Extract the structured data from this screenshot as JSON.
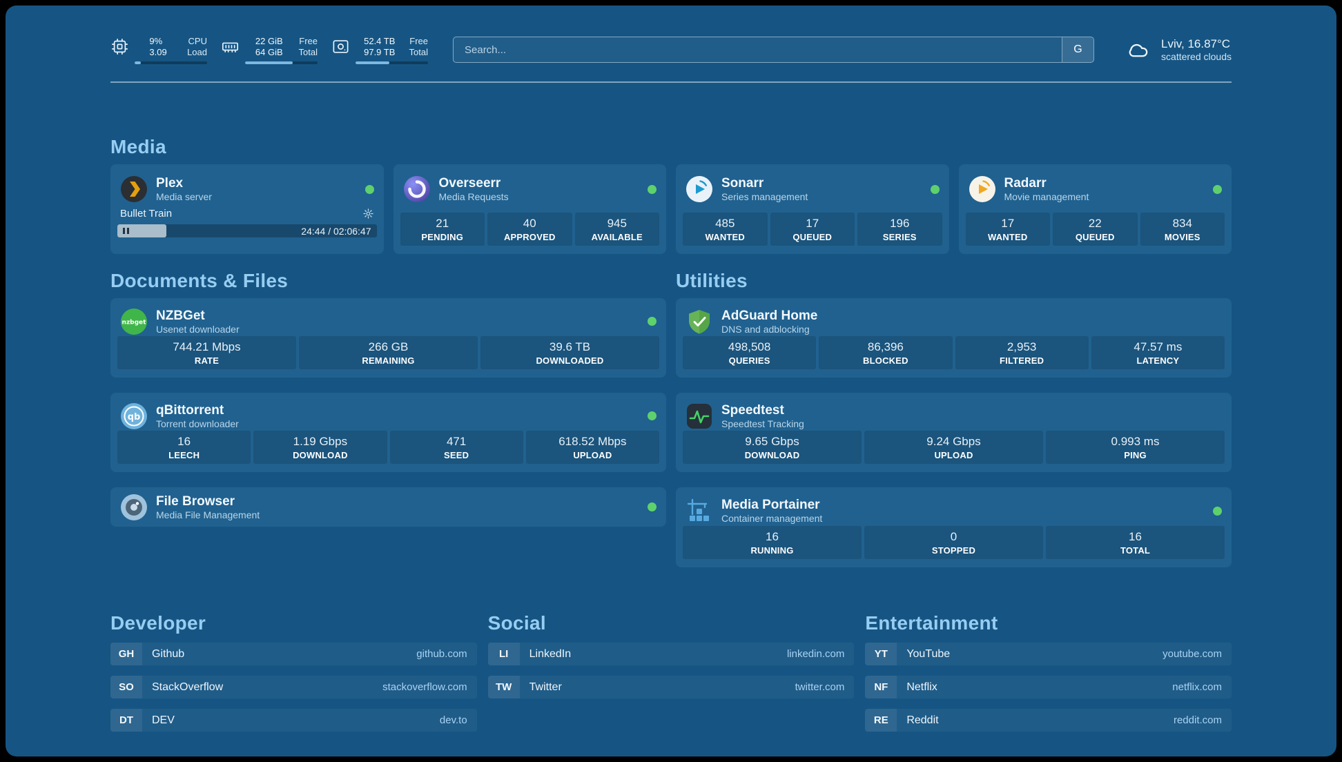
{
  "theme": {
    "background": "#165583",
    "card": "#20618f",
    "accent_green": "#5ed16c",
    "heading_blue": "#97cdf2",
    "url_blue": "#a7d3f3"
  },
  "topbar": {
    "cpu": {
      "value_top": "9%",
      "value_bottom": "3.09",
      "label_top": "CPU",
      "label_bottom": "Load",
      "bar_percent": 9
    },
    "ram": {
      "value_top": "22 GiB",
      "value_bottom": "64 GiB",
      "label_top": "Free",
      "label_bottom": "Total",
      "bar_percent": 66
    },
    "disk": {
      "value_top": "52.4 TB",
      "value_bottom": "97.9 TB",
      "label_top": "Free",
      "label_bottom": "Total",
      "bar_percent": 47
    },
    "search": {
      "placeholder": "Search...",
      "engine_label": "G"
    },
    "weather": {
      "location": "Lviv, 16.87°C",
      "condition": "scattered clouds"
    }
  },
  "media": {
    "title": "Media",
    "plex": {
      "name": "Plex",
      "subtitle": "Media server",
      "now_playing": "Bullet Train",
      "time": "24:44 / 02:06:47",
      "progress_percent": 19
    },
    "overseerr": {
      "name": "Overseerr",
      "subtitle": "Media Requests",
      "stats": [
        {
          "value": "21",
          "label": "PENDING"
        },
        {
          "value": "40",
          "label": "APPROVED"
        },
        {
          "value": "945",
          "label": "AVAILABLE"
        }
      ]
    },
    "sonarr": {
      "name": "Sonarr",
      "subtitle": "Series management",
      "stats": [
        {
          "value": "485",
          "label": "WANTED"
        },
        {
          "value": "17",
          "label": "QUEUED"
        },
        {
          "value": "196",
          "label": "SERIES"
        }
      ]
    },
    "radarr": {
      "name": "Radarr",
      "subtitle": "Movie management",
      "stats": [
        {
          "value": "17",
          "label": "WANTED"
        },
        {
          "value": "22",
          "label": "QUEUED"
        },
        {
          "value": "834",
          "label": "MOVIES"
        }
      ]
    }
  },
  "documents": {
    "title": "Documents & Files",
    "nzbget": {
      "name": "NZBGet",
      "subtitle": "Usenet downloader",
      "stats": [
        {
          "value": "744.21 Mbps",
          "label": "RATE"
        },
        {
          "value": "266 GB",
          "label": "REMAINING"
        },
        {
          "value": "39.6 TB",
          "label": "DOWNLOADED"
        }
      ]
    },
    "qbittorrent": {
      "name": "qBittorrent",
      "subtitle": "Torrent downloader",
      "stats": [
        {
          "value": "16",
          "label": "LEECH"
        },
        {
          "value": "1.19 Gbps",
          "label": "DOWNLOAD"
        },
        {
          "value": "471",
          "label": "SEED"
        },
        {
          "value": "618.52 Mbps",
          "label": "UPLOAD"
        }
      ]
    },
    "filebrowser": {
      "name": "File Browser",
      "subtitle": "Media File Management"
    }
  },
  "utilities": {
    "title": "Utilities",
    "adguard": {
      "name": "AdGuard Home",
      "subtitle": "DNS and adblocking",
      "stats": [
        {
          "value": "498,508",
          "label": "QUERIES"
        },
        {
          "value": "86,396",
          "label": "BLOCKED"
        },
        {
          "value": "2,953",
          "label": "FILTERED"
        },
        {
          "value": "47.57 ms",
          "label": "LATENCY"
        }
      ]
    },
    "speedtest": {
      "name": "Speedtest",
      "subtitle": "Speedtest Tracking",
      "stats": [
        {
          "value": "9.65 Gbps",
          "label": "DOWNLOAD"
        },
        {
          "value": "9.24 Gbps",
          "label": "UPLOAD"
        },
        {
          "value": "0.993 ms",
          "label": "PING"
        }
      ]
    },
    "portainer": {
      "name": "Media Portainer",
      "subtitle": "Container management",
      "stats": [
        {
          "value": "16",
          "label": "RUNNING"
        },
        {
          "value": "0",
          "label": "STOPPED"
        },
        {
          "value": "16",
          "label": "TOTAL"
        }
      ]
    }
  },
  "links": {
    "developer": {
      "title": "Developer",
      "items": [
        {
          "abbr": "GH",
          "name": "Github",
          "url": "github.com"
        },
        {
          "abbr": "SO",
          "name": "StackOverflow",
          "url": "stackoverflow.com"
        },
        {
          "abbr": "DT",
          "name": "DEV",
          "url": "dev.to"
        }
      ]
    },
    "social": {
      "title": "Social",
      "items": [
        {
          "abbr": "LI",
          "name": "LinkedIn",
          "url": "linkedin.com"
        },
        {
          "abbr": "TW",
          "name": "Twitter",
          "url": "twitter.com"
        }
      ]
    },
    "entertainment": {
      "title": "Entertainment",
      "items": [
        {
          "abbr": "YT",
          "name": "YouTube",
          "url": "youtube.com"
        },
        {
          "abbr": "NF",
          "name": "Netflix",
          "url": "netflix.com"
        },
        {
          "abbr": "RE",
          "name": "Reddit",
          "url": "reddit.com"
        }
      ]
    }
  }
}
